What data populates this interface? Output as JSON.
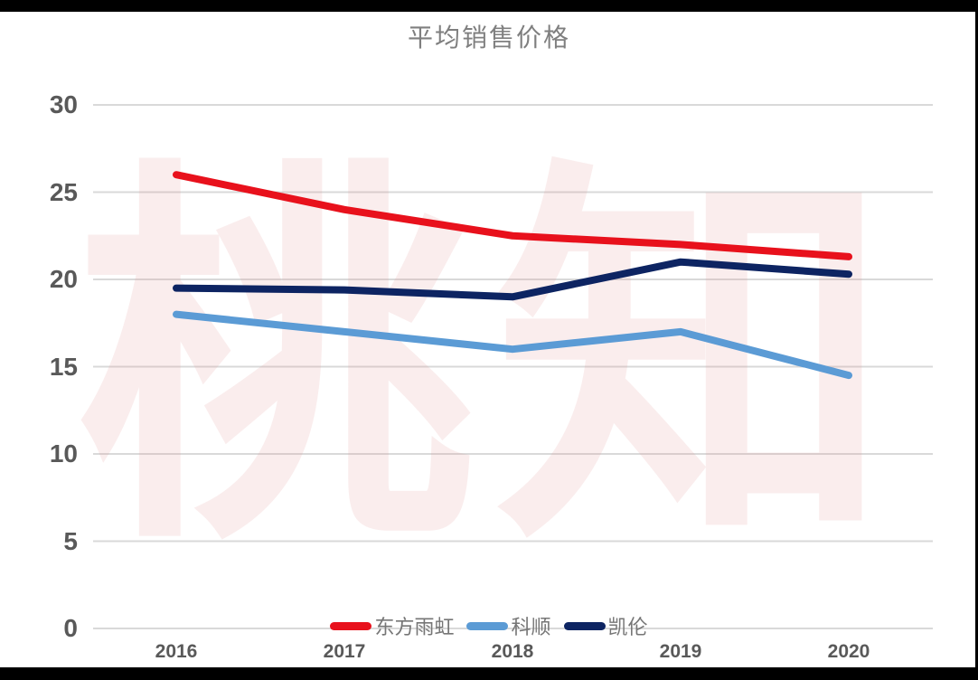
{
  "chart_data": {
    "type": "line",
    "title": "平均销售价格",
    "categories": [
      "2016",
      "2017",
      "2018",
      "2019",
      "2020"
    ],
    "series": [
      {
        "name": "东方雨虹",
        "color": "#e8111c",
        "values": [
          26.0,
          24.0,
          22.5,
          22.0,
          21.3
        ]
      },
      {
        "name": "科顺",
        "color": "#5b9bd5",
        "values": [
          18.0,
          17.0,
          16.0,
          17.0,
          14.5
        ]
      },
      {
        "name": "凯伦",
        "color": "#0d2462",
        "values": [
          19.5,
          19.4,
          19.0,
          21.0,
          20.3
        ]
      }
    ],
    "y_ticks": [
      0,
      5,
      10,
      15,
      20,
      25,
      30
    ],
    "ylim": [
      0,
      30
    ],
    "xlabel": "",
    "ylabel": "",
    "grid": "horizontal",
    "legend_position": "bottom-center"
  },
  "watermark": {
    "text": "桃知"
  },
  "colors": {
    "grid_line": "#d9d9d9",
    "tick_label": "#595959",
    "title_text": "#7f7f7f",
    "legend_text": "#767676",
    "frame_bars": "#000000",
    "background": "#ffffff"
  }
}
